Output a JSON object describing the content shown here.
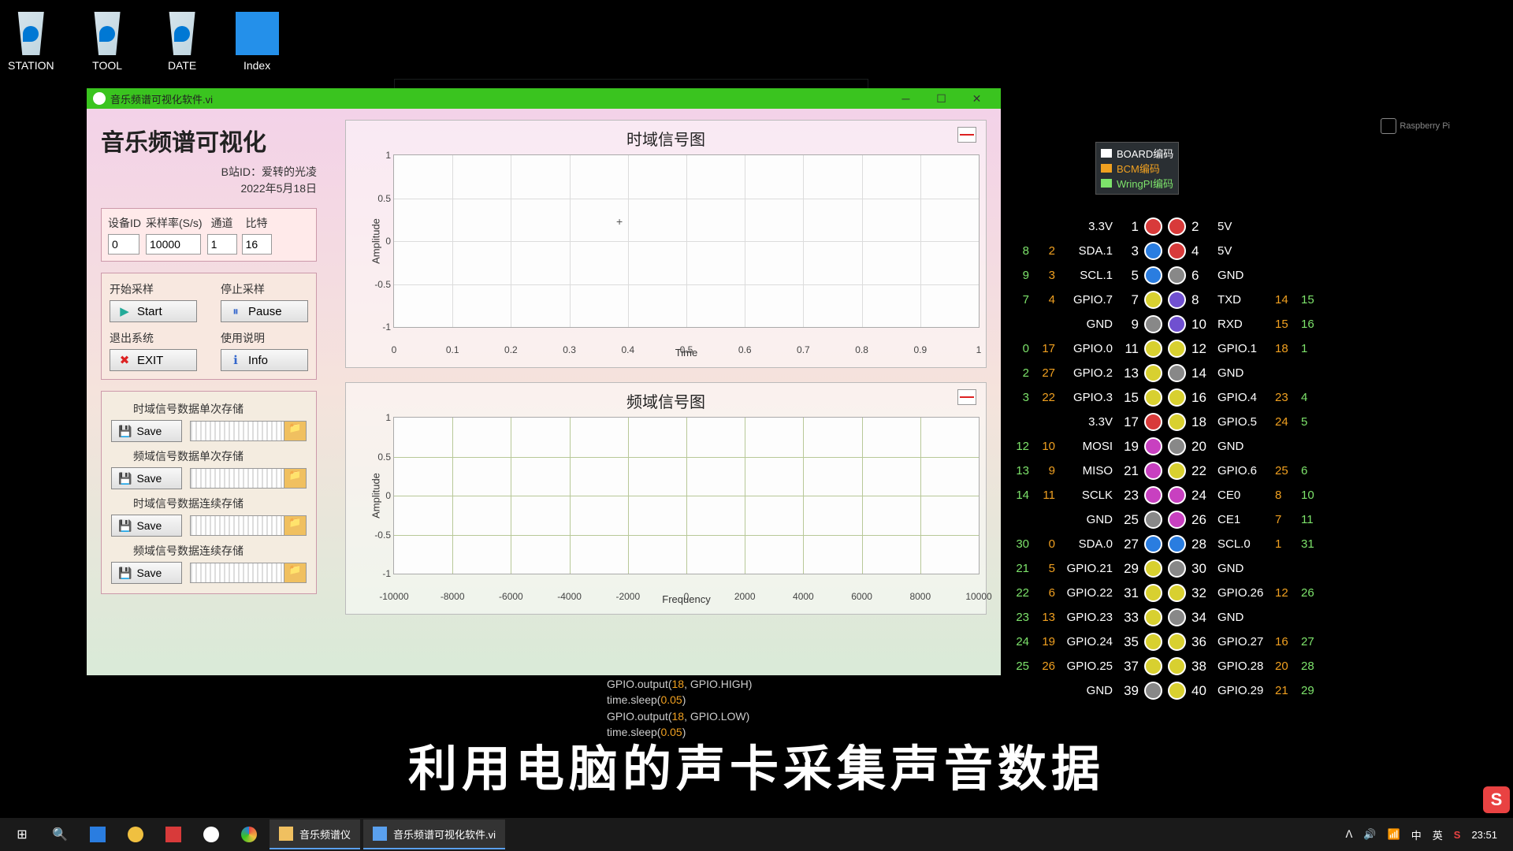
{
  "desktop": {
    "icons": [
      "STATION",
      "TOOL",
      "DATE",
      "Index"
    ]
  },
  "window": {
    "title": "音乐频谱可视化软件.vi",
    "heading": "音乐频谱可视化",
    "sub1": "B站ID：爱转的光凌",
    "sub2": "2022年5月18日"
  },
  "params": {
    "id_label": "设备ID",
    "id_value": "0",
    "rate_label": "采样率(S/s)",
    "rate_value": "10000",
    "ch_label": "通道",
    "ch_value": "1",
    "bit_label": "比特",
    "bit_value": "16"
  },
  "ctrl": {
    "start_label": "开始采样",
    "start_btn": "Start",
    "pause_label": "停止采样",
    "pause_btn": "Pause",
    "exit_label": "退出系统",
    "exit_btn": "EXIT",
    "info_label": "使用说明",
    "info_btn": "Info"
  },
  "save": {
    "btn": "Save",
    "items": [
      "时域信号数据单次存储",
      "频域信号数据单次存储",
      "时域信号数据连续存储",
      "频域信号数据连续存储"
    ]
  },
  "chart_time": {
    "title": "时域信号图",
    "ylabel": "Amplitude",
    "xlabel": "Time",
    "yticks": [
      {
        "v": "1",
        "p": 0
      },
      {
        "v": "0.5",
        "p": 25
      },
      {
        "v": "0",
        "p": 50
      },
      {
        "v": "-0.5",
        "p": 75
      },
      {
        "v": "-1",
        "p": 100
      }
    ],
    "xticks": [
      {
        "v": "0",
        "p": 0
      },
      {
        "v": "0.1",
        "p": 10
      },
      {
        "v": "0.2",
        "p": 20
      },
      {
        "v": "0.3",
        "p": 30
      },
      {
        "v": "0.4",
        "p": 40
      },
      {
        "v": "0.5",
        "p": 50
      },
      {
        "v": "0.6",
        "p": 60
      },
      {
        "v": "0.7",
        "p": 70
      },
      {
        "v": "0.8",
        "p": 80
      },
      {
        "v": "0.9",
        "p": 90
      },
      {
        "v": "1",
        "p": 100
      }
    ],
    "grid_color": "#dcdcdc",
    "bg": "#fdfdfd"
  },
  "chart_freq": {
    "title": "频域信号图",
    "ylabel": "Amplitude",
    "xlabel": "Frequency",
    "yticks": [
      {
        "v": "1",
        "p": 0
      },
      {
        "v": "0.5",
        "p": 25
      },
      {
        "v": "0",
        "p": 50
      },
      {
        "v": "-0.5",
        "p": 75
      },
      {
        "v": "-1",
        "p": 100
      }
    ],
    "xticks": [
      {
        "v": "-10000",
        "p": 0
      },
      {
        "v": "-8000",
        "p": 10
      },
      {
        "v": "-6000",
        "p": 20
      },
      {
        "v": "-4000",
        "p": 30
      },
      {
        "v": "-2000",
        "p": 40
      },
      {
        "v": "0",
        "p": 50
      },
      {
        "v": "2000",
        "p": 60
      },
      {
        "v": "4000",
        "p": 70
      },
      {
        "v": "6000",
        "p": 80
      },
      {
        "v": "8000",
        "p": 90
      },
      {
        "v": "10000",
        "p": 100
      }
    ],
    "grid_color": "#b8c898",
    "bg": "#fdfdfd"
  },
  "gpio_legend": [
    {
      "label": "BOARD编码",
      "color": "#ffffff"
    },
    {
      "label": "BCM编码",
      "color": "#f0a020"
    },
    {
      "label": "WringPI编码",
      "color": "#7de36b"
    }
  ],
  "gpio_rpi": "Raspberry Pi",
  "gpio": [
    {
      "wl": "",
      "bl": "",
      "nl": "3.3V",
      "pl": "1",
      "c1": "pwr",
      "c2": "pwr",
      "pr": "2",
      "nr": "5V",
      "br": "",
      "wr": ""
    },
    {
      "wl": "8",
      "bl": "2",
      "nl": "SDA.1",
      "pl": "3",
      "c1": "sda",
      "c2": "pwr",
      "pr": "4",
      "nr": "5V",
      "br": "",
      "wr": ""
    },
    {
      "wl": "9",
      "bl": "3",
      "nl": "SCL.1",
      "pl": "5",
      "c1": "sda",
      "c2": "gnd",
      "pr": "6",
      "nr": "GND",
      "br": "",
      "wr": ""
    },
    {
      "wl": "7",
      "bl": "4",
      "nl": "GPIO.7",
      "pl": "7",
      "c1": "gpio",
      "c2": "txd",
      "pr": "8",
      "nr": "TXD",
      "br": "14",
      "wr": "15"
    },
    {
      "wl": "",
      "bl": "",
      "nl": "GND",
      "pl": "9",
      "c1": "gnd",
      "c2": "txd",
      "pr": "10",
      "nr": "RXD",
      "br": "15",
      "wr": "16"
    },
    {
      "wl": "0",
      "bl": "17",
      "nl": "GPIO.0",
      "pl": "11",
      "c1": "gpio",
      "c2": "gpio",
      "pr": "12",
      "nr": "GPIO.1",
      "br": "18",
      "wr": "1"
    },
    {
      "wl": "2",
      "bl": "27",
      "nl": "GPIO.2",
      "pl": "13",
      "c1": "gpio",
      "c2": "gnd",
      "pr": "14",
      "nr": "GND",
      "br": "",
      "wr": ""
    },
    {
      "wl": "3",
      "bl": "22",
      "nl": "GPIO.3",
      "pl": "15",
      "c1": "gpio",
      "c2": "gpio",
      "pr": "16",
      "nr": "GPIO.4",
      "br": "23",
      "wr": "4"
    },
    {
      "wl": "",
      "bl": "",
      "nl": "3.3V",
      "pl": "17",
      "c1": "pwr",
      "c2": "gpio",
      "pr": "18",
      "nr": "GPIO.5",
      "br": "24",
      "wr": "5"
    },
    {
      "wl": "12",
      "bl": "10",
      "nl": "MOSI",
      "pl": "19",
      "c1": "spi",
      "c2": "gnd",
      "pr": "20",
      "nr": "GND",
      "br": "",
      "wr": ""
    },
    {
      "wl": "13",
      "bl": "9",
      "nl": "MISO",
      "pl": "21",
      "c1": "spi",
      "c2": "gpio",
      "pr": "22",
      "nr": "GPIO.6",
      "br": "25",
      "wr": "6"
    },
    {
      "wl": "14",
      "bl": "11",
      "nl": "SCLK",
      "pl": "23",
      "c1": "spi",
      "c2": "spi",
      "pr": "24",
      "nr": "CE0",
      "br": "8",
      "wr": "10"
    },
    {
      "wl": "",
      "bl": "",
      "nl": "GND",
      "pl": "25",
      "c1": "gnd",
      "c2": "spi",
      "pr": "26",
      "nr": "CE1",
      "br": "7",
      "wr": "11"
    },
    {
      "wl": "30",
      "bl": "0",
      "nl": "SDA.0",
      "pl": "27",
      "c1": "sda",
      "c2": "sda",
      "pr": "28",
      "nr": "SCL.0",
      "br": "1",
      "wr": "31"
    },
    {
      "wl": "21",
      "bl": "5",
      "nl": "GPIO.21",
      "pl": "29",
      "c1": "gpio",
      "c2": "gnd",
      "pr": "30",
      "nr": "GND",
      "br": "",
      "wr": ""
    },
    {
      "wl": "22",
      "bl": "6",
      "nl": "GPIO.22",
      "pl": "31",
      "c1": "gpio",
      "c2": "gpio",
      "pr": "32",
      "nr": "GPIO.26",
      "br": "12",
      "wr": "26"
    },
    {
      "wl": "23",
      "bl": "13",
      "nl": "GPIO.23",
      "pl": "33",
      "c1": "gpio",
      "c2": "gnd",
      "pr": "34",
      "nr": "GND",
      "br": "",
      "wr": ""
    },
    {
      "wl": "24",
      "bl": "19",
      "nl": "GPIO.24",
      "pl": "35",
      "c1": "gpio",
      "c2": "gpio",
      "pr": "36",
      "nr": "GPIO.27",
      "br": "16",
      "wr": "27"
    },
    {
      "wl": "25",
      "bl": "26",
      "nl": "GPIO.25",
      "pl": "37",
      "c1": "gpio",
      "c2": "gpio",
      "pr": "38",
      "nr": "GPIO.28",
      "br": "20",
      "wr": "28"
    },
    {
      "wl": "",
      "bl": "",
      "nl": "GND",
      "pl": "39",
      "c1": "gnd",
      "c2": "gpio",
      "pr": "40",
      "nr": "GPIO.29",
      "br": "21",
      "wr": "29"
    }
  ],
  "code": [
    {
      "pre": "GPIO.output(",
      "a": "18",
      "mid": ", GPIO.HIGH)"
    },
    {
      "pre": "time.sleep(",
      "a": "0.05",
      "mid": ")"
    },
    {
      "pre": "GPIO.output(",
      "a": "18",
      "mid": ", GPIO.LOW)"
    },
    {
      "pre": "time.sleep(",
      "a": "0.05",
      "mid": ")"
    }
  ],
  "subtitle": "利用电脑的声卡采集声音数据",
  "taskbar": {
    "tasks": [
      "音乐频谱仪",
      "音乐频谱可视化软件.vi"
    ],
    "tray": {
      "ime1": "中",
      "ime2": "英",
      "time": "23:51"
    }
  }
}
